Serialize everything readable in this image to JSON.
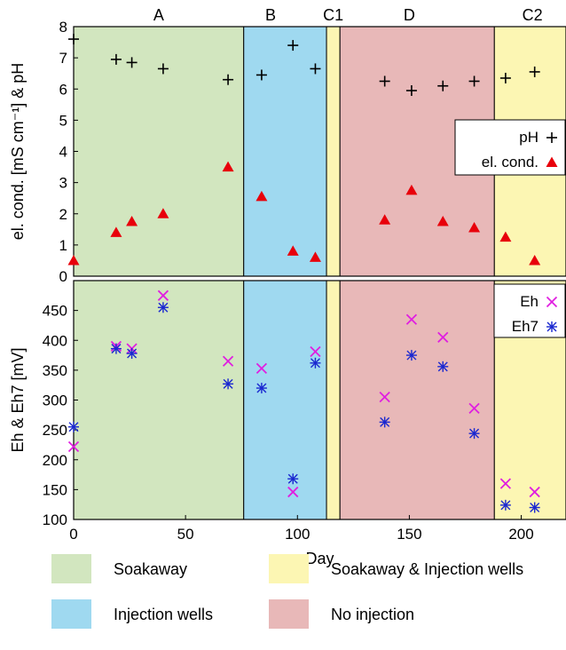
{
  "chart_data": [
    {
      "type": "scatter",
      "ylabel": "el. cond. [mS cm⁻¹] & pH",
      "ylim": [
        0,
        8
      ],
      "yticks": [
        0,
        1,
        2,
        3,
        4,
        5,
        6,
        7,
        8
      ],
      "xlim": [
        0,
        220
      ],
      "phase_labels": [
        {
          "label": "A",
          "x": 38
        },
        {
          "label": "B",
          "x": 88
        },
        {
          "label": "C1",
          "x": 116
        },
        {
          "label": "D",
          "x": 150
        },
        {
          "label": "C2",
          "x": 205
        }
      ],
      "series": [
        {
          "name": "pH",
          "marker": "plus",
          "color": "#000000",
          "x": [
            0,
            19,
            26,
            40,
            69,
            84,
            98,
            108,
            139,
            151,
            165,
            179,
            193,
            206
          ],
          "y": [
            7.6,
            6.95,
            6.85,
            6.65,
            6.3,
            6.45,
            7.4,
            6.65,
            6.25,
            5.95,
            6.1,
            6.25,
            6.35,
            6.55
          ]
        },
        {
          "name": "el. cond.",
          "marker": "triangle",
          "color": "#e8000b",
          "x": [
            0,
            19,
            26,
            40,
            69,
            84,
            98,
            108,
            139,
            151,
            165,
            179,
            193,
            206
          ],
          "y": [
            0.5,
            1.4,
            1.75,
            2.0,
            3.5,
            2.55,
            0.8,
            0.6,
            1.8,
            2.75,
            1.75,
            1.55,
            1.25,
            0.5
          ]
        }
      ],
      "legend_position": "right"
    },
    {
      "type": "scatter",
      "xlabel": "Day",
      "ylabel": "Eh & Eh7 [mV]",
      "ylim": [
        100,
        500
      ],
      "yticks": [
        100,
        150,
        200,
        250,
        300,
        350,
        400,
        450
      ],
      "xlim": [
        0,
        220
      ],
      "xticks": [
        0,
        50,
        100,
        150,
        200
      ],
      "series": [
        {
          "name": "Eh",
          "marker": "x",
          "color": "#e01ee0",
          "x": [
            0,
            19,
            26,
            40,
            69,
            84,
            98,
            108,
            139,
            151,
            165,
            179,
            193,
            206
          ],
          "y": [
            222,
            390,
            386,
            475,
            365,
            353,
            146,
            381,
            305,
            435,
            405,
            286,
            160,
            146
          ]
        },
        {
          "name": "Eh7",
          "marker": "asterisk",
          "color": "#1a28d0",
          "x": [
            0,
            19,
            26,
            40,
            69,
            84,
            98,
            108,
            139,
            151,
            165,
            179,
            193,
            206
          ],
          "y": [
            255,
            386,
            378,
            455,
            327,
            320,
            168,
            362,
            263,
            375,
            356,
            244,
            124,
            120
          ]
        }
      ],
      "legend_position": "top-right"
    }
  ],
  "phases": [
    {
      "label": "Soakaway",
      "start": 0,
      "end": 76,
      "color": "#d2e6bf"
    },
    {
      "label": "Injection wells",
      "start": 76,
      "end": 113,
      "color": "#9fd9f0"
    },
    {
      "label": "Soakaway & Injection wells",
      "start": 113,
      "end": 119,
      "color": "#fcf6b3"
    },
    {
      "label": "No injection",
      "start": 119,
      "end": 188,
      "color": "#e8b8b8"
    },
    {
      "label": "Soakaway & Injection wells",
      "start": 188,
      "end": 220,
      "color": "#fcf6b3"
    }
  ],
  "key": [
    {
      "label": "Soakaway",
      "color": "#d2e6bf"
    },
    {
      "label": "Soakaway & Injection wells",
      "color": "#fcf6b3"
    },
    {
      "label": "Injection wells",
      "color": "#9fd9f0"
    },
    {
      "label": "No injection",
      "color": "#e8b8b8"
    }
  ]
}
